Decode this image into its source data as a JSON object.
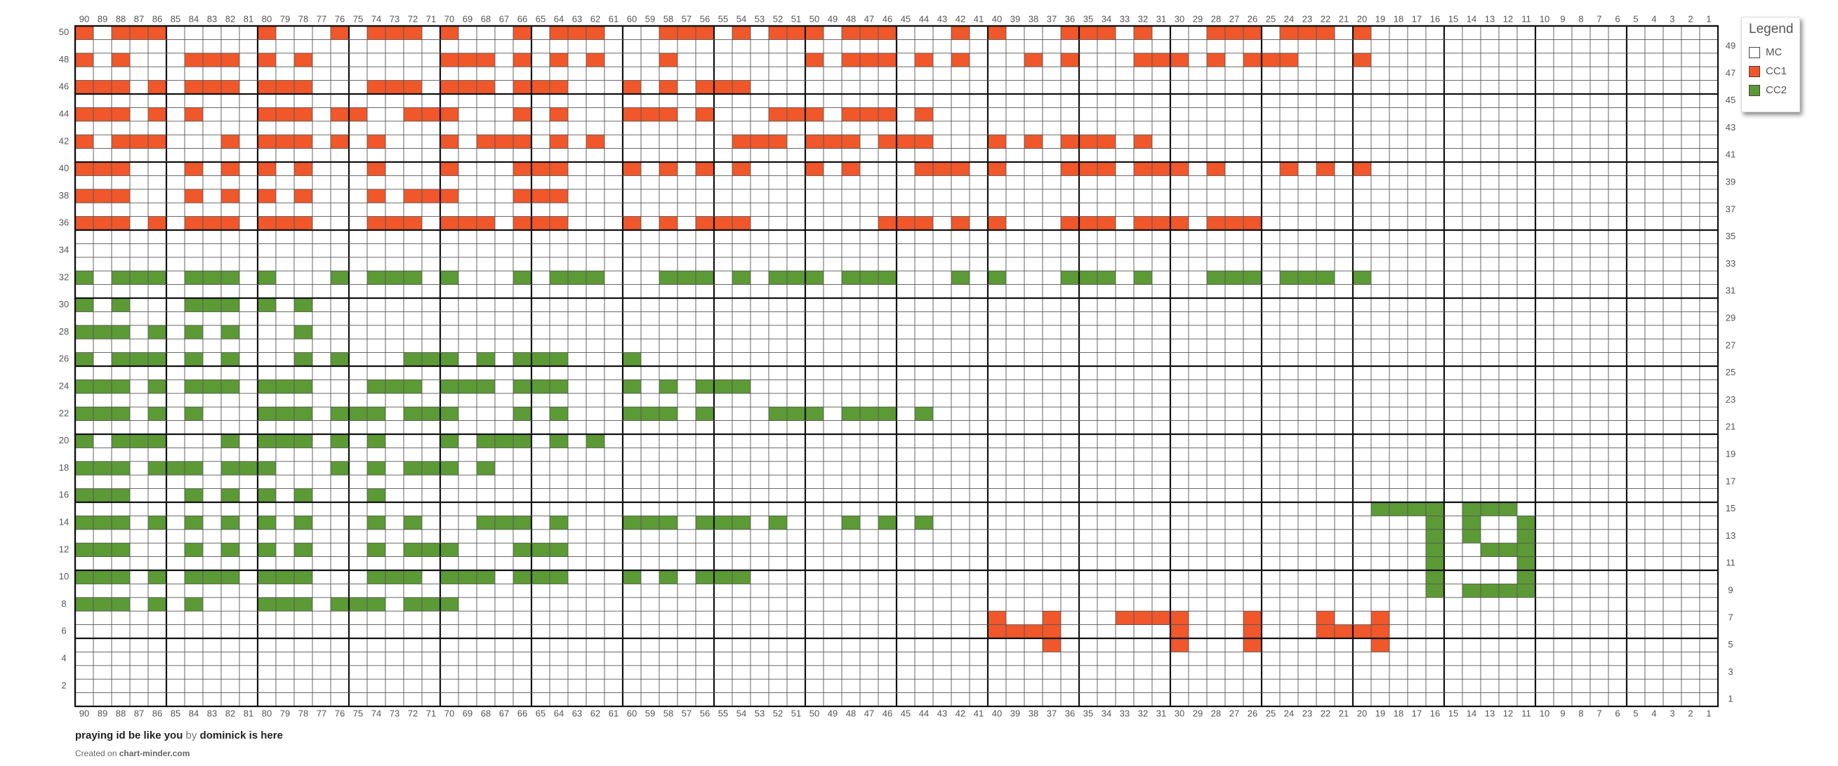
{
  "legend": {
    "title": "Legend",
    "items": [
      {
        "label": "MC",
        "color": "#ffffff"
      },
      {
        "label": "CC1",
        "color": "#f0572a"
      },
      {
        "label": "CC2",
        "color": "#5c9a35"
      }
    ]
  },
  "columns": [
    90,
    89,
    88,
    87,
    86,
    85,
    84,
    83,
    82,
    81,
    80,
    79,
    78,
    77,
    76,
    75,
    74,
    73,
    72,
    71,
    70,
    69,
    68,
    67,
    66,
    65,
    64,
    63,
    62,
    61,
    60,
    59,
    58,
    57,
    56,
    55,
    54,
    53,
    52,
    51,
    50,
    49,
    48,
    47,
    46,
    45,
    44,
    43,
    42,
    41,
    40,
    39,
    38,
    37,
    36,
    35,
    34,
    33,
    32,
    31,
    30,
    29,
    28,
    27,
    26,
    25,
    24,
    23,
    22,
    21,
    20,
    19,
    18,
    17,
    16,
    15,
    14,
    13,
    12,
    11,
    10,
    9,
    8,
    7,
    6,
    5,
    4,
    3,
    2,
    1
  ],
  "left_row_labels": [
    50,
    48,
    46,
    44,
    42,
    40,
    38,
    36,
    34,
    32,
    30,
    28,
    26,
    24,
    22,
    20,
    18,
    16,
    14,
    12,
    10,
    8,
    6,
    4,
    2
  ],
  "right_row_labels": [
    49,
    47,
    45,
    43,
    41,
    39,
    37,
    35,
    33,
    31,
    29,
    27,
    25,
    23,
    21,
    19,
    17,
    15,
    13,
    11,
    9,
    7,
    5,
    3,
    1
  ],
  "stitches": [
    {
      "row": 50,
      "legend": 1,
      "columns": [
        90,
        88,
        87,
        86,
        80,
        76,
        74,
        73,
        72,
        70,
        66,
        64,
        63,
        62,
        58,
        57,
        56,
        54,
        52,
        51,
        50,
        48,
        47,
        46,
        42,
        40,
        36,
        35,
        34,
        32,
        28,
        27,
        26,
        24,
        23,
        22,
        20
      ]
    },
    {
      "row": 48,
      "legend": 1,
      "columns": [
        90,
        88,
        84,
        83,
        82,
        80,
        78,
        70,
        69,
        68,
        66,
        64,
        62,
        58,
        50,
        48,
        47,
        46,
        44,
        42,
        38,
        36,
        32,
        31,
        30,
        28,
        26,
        25,
        24,
        20
      ]
    },
    {
      "row": 46,
      "legend": 1,
      "columns": [
        90,
        89,
        88,
        86,
        84,
        83,
        82,
        80,
        79,
        78,
        74,
        73,
        72,
        70,
        69,
        68,
        66,
        65,
        64,
        60,
        58,
        56,
        55,
        54
      ]
    },
    {
      "row": 44,
      "legend": 1,
      "columns": [
        90,
        89,
        88,
        86,
        84,
        80,
        79,
        78,
        76,
        75,
        72,
        71,
        70,
        66,
        64,
        60,
        59,
        58,
        56,
        52,
        51,
        50,
        48,
        47,
        46,
        44
      ]
    },
    {
      "row": 42,
      "legend": 1,
      "columns": [
        90,
        88,
        87,
        86,
        82,
        80,
        79,
        78,
        76,
        74,
        70,
        68,
        67,
        66,
        64,
        62,
        54,
        53,
        52,
        50,
        49,
        48,
        46,
        45,
        44,
        40,
        38,
        36,
        35,
        34,
        32
      ]
    },
    {
      "row": 40,
      "legend": 1,
      "columns": [
        90,
        89,
        88,
        84,
        82,
        80,
        78,
        74,
        70,
        66,
        65,
        64,
        60,
        58,
        56,
        54,
        50,
        48,
        44,
        43,
        42,
        40,
        36,
        35,
        34,
        32,
        31,
        30,
        28,
        24,
        22,
        20
      ]
    },
    {
      "row": 38,
      "legend": 1,
      "columns": [
        90,
        89,
        88,
        84,
        82,
        80,
        78,
        74,
        72,
        71,
        70,
        66,
        65,
        64
      ]
    },
    {
      "row": 36,
      "legend": 1,
      "columns": [
        90,
        89,
        88,
        86,
        84,
        83,
        82,
        80,
        79,
        78,
        74,
        73,
        72,
        70,
        69,
        68,
        66,
        65,
        64,
        60,
        58,
        56,
        55,
        54,
        46,
        45,
        44,
        42,
        40,
        36,
        35,
        34,
        32,
        31,
        30,
        28,
        27,
        26
      ]
    },
    {
      "row": 32,
      "legend": 2,
      "columns": [
        90,
        88,
        87,
        86,
        84,
        83,
        82,
        80,
        76,
        74,
        73,
        72,
        70,
        66,
        64,
        63,
        62,
        58,
        57,
        56,
        54,
        52,
        51,
        50,
        48,
        47,
        46,
        42,
        40,
        36,
        35,
        34,
        32,
        28,
        27,
        26,
        24,
        23,
        22,
        20
      ]
    },
    {
      "row": 30,
      "legend": 2,
      "columns": [
        90,
        88,
        84,
        83,
        82,
        80,
        78
      ]
    },
    {
      "row": 28,
      "legend": 2,
      "columns": [
        90,
        89,
        88,
        86,
        84,
        82,
        78
      ]
    },
    {
      "row": 26,
      "legend": 2,
      "columns": [
        90,
        88,
        87,
        86,
        84,
        82,
        78,
        76,
        72,
        71,
        70,
        68,
        66,
        65,
        64,
        60
      ]
    },
    {
      "row": 24,
      "legend": 2,
      "columns": [
        90,
        89,
        88,
        86,
        84,
        83,
        82,
        80,
        79,
        78,
        74,
        73,
        72,
        70,
        69,
        68,
        66,
        65,
        64,
        60,
        58,
        56,
        55,
        54
      ]
    },
    {
      "row": 22,
      "legend": 2,
      "columns": [
        90,
        89,
        88,
        86,
        84,
        80,
        79,
        78,
        76,
        75,
        74,
        72,
        71,
        70,
        66,
        64,
        60,
        59,
        58,
        56,
        52,
        51,
        50,
        48,
        47,
        46,
        44
      ]
    },
    {
      "row": 20,
      "legend": 2,
      "columns": [
        90,
        88,
        87,
        86,
        82,
        80,
        79,
        78,
        76,
        74,
        70,
        68,
        67,
        66,
        64,
        62
      ]
    },
    {
      "row": 18,
      "legend": 2,
      "columns": [
        90,
        89,
        88,
        86,
        85,
        84,
        82,
        81,
        80,
        76,
        74,
        72,
        71,
        70,
        68
      ]
    },
    {
      "row": 16,
      "legend": 2,
      "columns": [
        90,
        89,
        88,
        84,
        82,
        80,
        78,
        74
      ]
    },
    {
      "row": 15,
      "legend": 2,
      "columns": [
        19,
        18,
        17,
        16,
        14,
        13,
        12
      ]
    },
    {
      "row": 14,
      "legend": 2,
      "columns": [
        90,
        89,
        88,
        86,
        84,
        82,
        80,
        78,
        74,
        72,
        68,
        67,
        66,
        64,
        60,
        59,
        58,
        56,
        55,
        54,
        52,
        48,
        46,
        44,
        16,
        14,
        11
      ]
    },
    {
      "row": 13,
      "legend": 2,
      "columns": [
        16,
        14,
        11
      ]
    },
    {
      "row": 12,
      "legend": 2,
      "columns": [
        90,
        89,
        88,
        84,
        82,
        80,
        78,
        74,
        72,
        71,
        70,
        66,
        65,
        64,
        16,
        13,
        12,
        11
      ]
    },
    {
      "row": 11,
      "legend": 2,
      "columns": [
        16,
        11
      ]
    },
    {
      "row": 10,
      "legend": 2,
      "columns": [
        90,
        89,
        88,
        86,
        84,
        83,
        82,
        80,
        79,
        78,
        74,
        73,
        72,
        70,
        69,
        68,
        66,
        65,
        64,
        60,
        58,
        56,
        55,
        54,
        16,
        11
      ]
    },
    {
      "row": 9,
      "legend": 2,
      "columns": [
        16,
        14,
        13,
        12,
        11
      ]
    },
    {
      "row": 8,
      "legend": 2,
      "columns": [
        90,
        89,
        88,
        86,
        84,
        80,
        79,
        78,
        76,
        75,
        74,
        72,
        71,
        70
      ]
    },
    {
      "row": 7,
      "legend": 1,
      "columns": [
        40,
        37,
        33,
        32,
        31,
        30,
        26,
        22,
        19
      ]
    },
    {
      "row": 6,
      "legend": 1,
      "columns": [
        40,
        39,
        38,
        37,
        30,
        26,
        22,
        21,
        20,
        19
      ]
    },
    {
      "row": 5,
      "legend": 1,
      "columns": [
        37,
        30,
        26,
        19
      ]
    }
  ],
  "footer": {
    "title": "praying id be like you",
    "by": "by",
    "author": "dominick is here",
    "created": "Created on",
    "site": "chart-minder.com"
  }
}
